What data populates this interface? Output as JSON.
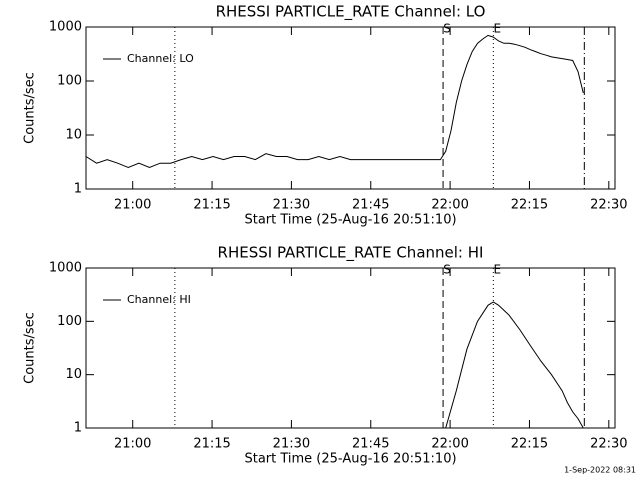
{
  "chart_data": [
    {
      "type": "line",
      "title": "RHESSI PARTICLE_RATE Channel: LO",
      "x_label": "Start Time (25-Aug-16 20:51:10)",
      "y_label": "Counts/sec",
      "log_scale_y": true,
      "legend": "upper-left",
      "xlim": [
        0,
        100
      ],
      "ylim": [
        1,
        1000
      ],
      "yticks": [
        1,
        10,
        100,
        1000
      ],
      "xticks": [
        {
          "value": 8.83,
          "label": "21:00"
        },
        {
          "value": 23.83,
          "label": "21:15"
        },
        {
          "value": 38.83,
          "label": "21:30"
        },
        {
          "value": 53.83,
          "label": "21:45"
        },
        {
          "value": 68.83,
          "label": "22:00"
        },
        {
          "value": 83.83,
          "label": "22:15"
        },
        {
          "value": 98.83,
          "label": "22:30"
        }
      ],
      "markers": [
        {
          "x": 16.8,
          "style": "dotted"
        },
        {
          "x": 67.5,
          "style": "dashed",
          "label": "S"
        },
        {
          "x": 77,
          "style": "dotted",
          "label": "E"
        },
        {
          "x": 94.2,
          "style": "dashdot"
        }
      ],
      "x": [
        0,
        2,
        4,
        6,
        8,
        10,
        12,
        14,
        16,
        18,
        20,
        22,
        24,
        26,
        28,
        30,
        32,
        34,
        36,
        38,
        40,
        42,
        44,
        46,
        48,
        50,
        52,
        54,
        56,
        58,
        60,
        62,
        64,
        66,
        67,
        68,
        69,
        70,
        71,
        72,
        73,
        74,
        75,
        76,
        77,
        78,
        79,
        80,
        81,
        82,
        83,
        84,
        85,
        86,
        87,
        88,
        89,
        90,
        91,
        92,
        93,
        94
      ],
      "series": [
        {
          "name": "Channel: LO",
          "color": "#000000",
          "values": [
            4,
            3,
            3.5,
            3,
            2.5,
            3,
            2.5,
            3,
            3,
            3.5,
            4,
            3.5,
            4,
            3.5,
            4,
            4,
            3.5,
            4.5,
            4,
            4,
            3.5,
            3.5,
            4,
            3.5,
            4,
            3.5,
            3.5,
            3.5,
            3.5,
            3.5,
            3.5,
            3.5,
            3.5,
            3.5,
            3.5,
            5,
            12,
            40,
            100,
            200,
            350,
            500,
            600,
            700,
            650,
            550,
            500,
            500,
            480,
            450,
            420,
            380,
            350,
            320,
            300,
            280,
            270,
            260,
            250,
            240,
            150,
            60
          ]
        }
      ]
    },
    {
      "type": "line",
      "title": "RHESSI PARTICLE_RATE Channel: HI",
      "x_label": "Start Time (25-Aug-16 20:51:10)",
      "y_label": "Counts/sec",
      "log_scale_y": true,
      "legend": "upper-left",
      "xlim": [
        0,
        100
      ],
      "ylim": [
        1,
        1000
      ],
      "yticks": [
        1,
        10,
        100,
        1000
      ],
      "xticks": [
        {
          "value": 8.83,
          "label": "21:00"
        },
        {
          "value": 23.83,
          "label": "21:15"
        },
        {
          "value": 38.83,
          "label": "21:30"
        },
        {
          "value": 53.83,
          "label": "21:45"
        },
        {
          "value": 68.83,
          "label": "22:00"
        },
        {
          "value": 83.83,
          "label": "22:15"
        },
        {
          "value": 98.83,
          "label": "22:30"
        }
      ],
      "markers": [
        {
          "x": 16.8,
          "style": "dotted"
        },
        {
          "x": 67.5,
          "style": "dashed",
          "label": "S"
        },
        {
          "x": 77,
          "style": "dotted",
          "label": "E"
        },
        {
          "x": 94.2,
          "style": "dashdot"
        }
      ],
      "x": [
        68,
        70,
        72,
        74,
        76,
        77,
        78,
        80,
        82,
        84,
        86,
        88,
        90,
        91,
        92,
        93,
        94
      ],
      "series": [
        {
          "name": "Channel: HI",
          "color": "#000000",
          "values": [
            1,
            5,
            30,
            100,
            200,
            230,
            200,
            130,
            70,
            35,
            18,
            10,
            5,
            3,
            2,
            1.5,
            1
          ]
        }
      ]
    }
  ],
  "footer": "1-Sep-2022 08:31"
}
